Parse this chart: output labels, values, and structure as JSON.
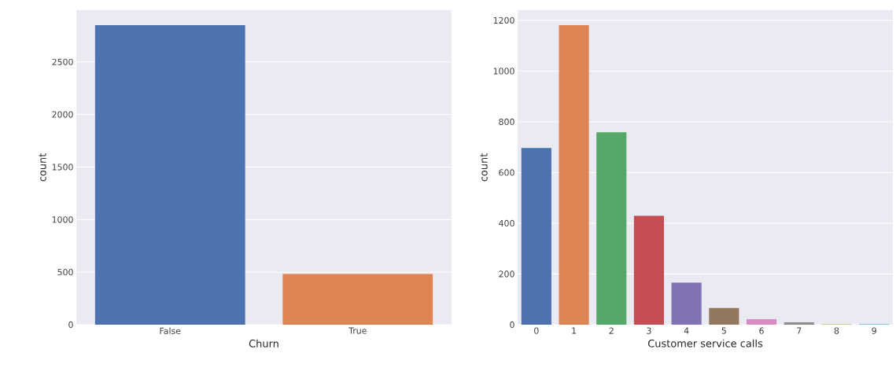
{
  "chart_data": [
    {
      "type": "bar",
      "xlabel": "Churn",
      "ylabel": "count",
      "categories": [
        "False",
        "True"
      ],
      "values": [
        2850,
        483
      ],
      "colors": [
        "#4c72b0",
        "#dd8452"
      ],
      "ylim": [
        0,
        2992
      ],
      "yticks": [
        0,
        500,
        1000,
        1500,
        2000,
        2500
      ],
      "grid": "y"
    },
    {
      "type": "bar",
      "xlabel": "Customer service calls",
      "ylabel": "count",
      "categories": [
        "0",
        "1",
        "2",
        "3",
        "4",
        "5",
        "6",
        "7",
        "8",
        "9"
      ],
      "values": [
        697,
        1181,
        759,
        429,
        166,
        66,
        22,
        9,
        2,
        2
      ],
      "colors": [
        "#4c72b0",
        "#dd8452",
        "#55a868",
        "#c44e52",
        "#8172b3",
        "#937860",
        "#da8bc3",
        "#8c8c8c",
        "#ccb974",
        "#64b5cd"
      ],
      "ylim": [
        0,
        1240
      ],
      "yticks": [
        0,
        200,
        400,
        600,
        800,
        1000,
        1200
      ],
      "grid": "y"
    }
  ]
}
